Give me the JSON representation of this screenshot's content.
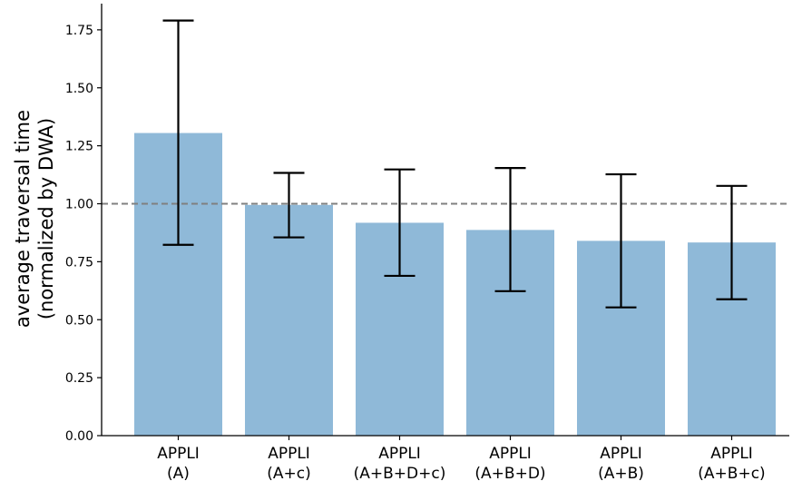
{
  "chart_data": {
    "type": "bar",
    "categories": [
      [
        "APPLI",
        "(A)"
      ],
      [
        "APPLI",
        "(A+c)"
      ],
      [
        "APPLI",
        "(A+B+D+c)"
      ],
      [
        "APPLI",
        "(A+B+D)"
      ],
      [
        "APPLI",
        "(A+B)"
      ],
      [
        "APPLI",
        "(A+B+c)"
      ]
    ],
    "values": [
      1.305,
      0.995,
      0.918,
      0.887,
      0.84,
      0.833
    ],
    "error_low": [
      0.823,
      0.855,
      0.689,
      0.623,
      0.553,
      0.588
    ],
    "error_high": [
      1.79,
      1.133,
      1.148,
      1.154,
      1.127,
      1.077
    ],
    "reference_line": 1.0,
    "ylabel": [
      "average traversal time",
      "(normalized by DWA)"
    ],
    "xlabel": "",
    "title": "",
    "ylim": [
      0,
      1.87
    ],
    "yticks": [
      "0.00",
      "0.25",
      "0.50",
      "0.75",
      "1.00",
      "1.25",
      "1.50",
      "1.75"
    ],
    "grid": false,
    "colors": {
      "bar": "#8fb9d8",
      "error_bar": "#000000",
      "reference_line": "#808080",
      "axis": "#000000"
    }
  }
}
